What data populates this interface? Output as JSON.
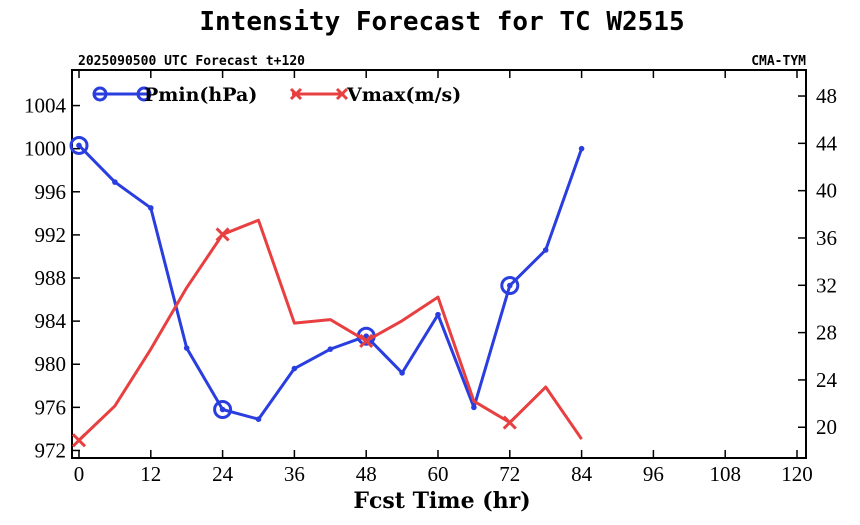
{
  "chart_data": {
    "type": "line",
    "title": "Intensity Forecast for TC W2515",
    "subtitle_left": "2025090500 UTC Forecast t+120",
    "subtitle_right": "CMA-TYM",
    "xlabel": "Fcst Time (hr)",
    "xlim": [
      0,
      120
    ],
    "xticks": [
      0,
      12,
      24,
      36,
      48,
      60,
      72,
      84,
      96,
      108,
      120
    ],
    "left_axis": {
      "ylim": [
        971.3,
        1007.3
      ],
      "ticks": [
        972,
        976,
        980,
        984,
        988,
        992,
        996,
        1000,
        1004
      ]
    },
    "right_axis": {
      "ylim": [
        17.4,
        50.2
      ],
      "ticks": [
        20,
        24,
        28,
        32,
        36,
        40,
        44,
        48
      ]
    },
    "legend_position": "top-left",
    "series": [
      {
        "name": "Pmin(hPa)",
        "axis": "left",
        "color": "#2a3ee0",
        "marker": "circle",
        "marker_at": [
          0,
          24,
          48,
          72
        ],
        "x": [
          0,
          6,
          12,
          18,
          24,
          30,
          36,
          42,
          48,
          54,
          60,
          66,
          72,
          78,
          84
        ],
        "values": [
          1000.3,
          996.9,
          994.5,
          981.5,
          975.8,
          974.9,
          979.6,
          981.4,
          982.6,
          979.2,
          984.6,
          976.0,
          987.3,
          990.6,
          1000.0
        ]
      },
      {
        "name": "Vmax(m/s)",
        "axis": "right",
        "color": "#e84040",
        "marker": "x",
        "marker_at": [
          0,
          24,
          48,
          72
        ],
        "x": [
          0,
          6,
          12,
          18,
          24,
          30,
          36,
          42,
          48,
          54,
          60,
          66,
          72,
          78,
          84
        ],
        "values": [
          18.9,
          21.8,
          26.6,
          31.8,
          36.3,
          37.5,
          28.8,
          29.1,
          27.3,
          29.0,
          31.0,
          22.2,
          20.4,
          23.4,
          19.0
        ]
      }
    ]
  }
}
